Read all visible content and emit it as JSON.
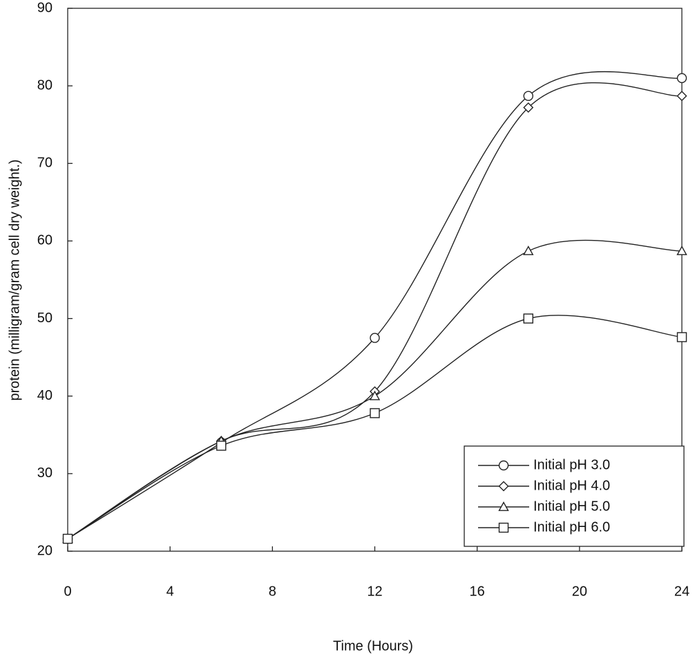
{
  "chart_data": {
    "type": "line",
    "x_label": "Time (Hours)",
    "y_label": "protein (milligram/gram cell dry weight.)",
    "x": [
      0,
      6,
      12,
      18,
      24
    ],
    "xlim": [
      0,
      24
    ],
    "xticks": [
      0,
      4,
      8,
      12,
      16,
      20,
      24
    ],
    "ylim": [
      20,
      90
    ],
    "yticks": [
      20,
      30,
      40,
      50,
      60,
      70,
      80,
      90
    ],
    "legend_position": "lower right",
    "series": [
      {
        "name": "Initial pH 3.0",
        "color": "#222222",
        "marker": "circle",
        "values": [
          21.6,
          34.0,
          47.5,
          78.7,
          81.0
        ]
      },
      {
        "name": "Initial pH 4.0",
        "color": "#222222",
        "marker": "diamond",
        "values": [
          21.6,
          34.2,
          40.6,
          77.2,
          78.7
        ]
      },
      {
        "name": "Initial pH 5.0",
        "color": "#222222",
        "marker": "triangle",
        "values": [
          21.6,
          34.2,
          40.0,
          58.7,
          58.7
        ]
      },
      {
        "name": "Initial pH 6.0",
        "color": "#222222",
        "marker": "square",
        "values": [
          21.6,
          33.6,
          37.8,
          50.0,
          47.6
        ]
      }
    ]
  }
}
